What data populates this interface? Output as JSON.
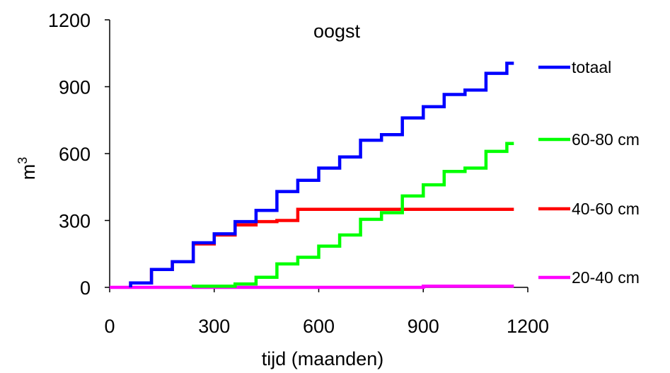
{
  "chart_data": {
    "type": "line",
    "title": "oogst",
    "xlabel": "tijd (maanden)",
    "ylabel_base": "m",
    "ylabel_sup": "3",
    "xlim": [
      0,
      1200
    ],
    "ylim": [
      0,
      1200
    ],
    "xticks": [
      0,
      300,
      600,
      900,
      1200
    ],
    "yticks": [
      0,
      300,
      600,
      900,
      1200
    ],
    "grid": false,
    "legend_position": "right",
    "series": [
      {
        "name": "totaal",
        "color": "#0000ff",
        "points": [
          [
            60,
            0
          ],
          [
            60,
            20
          ],
          [
            120,
            20
          ],
          [
            120,
            80
          ],
          [
            180,
            80
          ],
          [
            180,
            115
          ],
          [
            240,
            115
          ],
          [
            240,
            200
          ],
          [
            300,
            200
          ],
          [
            300,
            240
          ],
          [
            360,
            240
          ],
          [
            360,
            295
          ],
          [
            420,
            295
          ],
          [
            420,
            345
          ],
          [
            480,
            345
          ],
          [
            480,
            430
          ],
          [
            540,
            430
          ],
          [
            540,
            480
          ],
          [
            600,
            480
          ],
          [
            600,
            535
          ],
          [
            660,
            535
          ],
          [
            660,
            585
          ],
          [
            720,
            585
          ],
          [
            720,
            660
          ],
          [
            780,
            660
          ],
          [
            780,
            685
          ],
          [
            840,
            685
          ],
          [
            840,
            760
          ],
          [
            900,
            760
          ],
          [
            900,
            810
          ],
          [
            960,
            810
          ],
          [
            960,
            865
          ],
          [
            1020,
            865
          ],
          [
            1020,
            885
          ],
          [
            1080,
            885
          ],
          [
            1080,
            960
          ],
          [
            1140,
            960
          ],
          [
            1140,
            1005
          ],
          [
            1160,
            1005
          ]
        ]
      },
      {
        "name": "60-80 cm",
        "color": "#00ff00",
        "points": [
          [
            240,
            0
          ],
          [
            240,
            5
          ],
          [
            360,
            5
          ],
          [
            360,
            15
          ],
          [
            420,
            15
          ],
          [
            420,
            45
          ],
          [
            480,
            45
          ],
          [
            480,
            105
          ],
          [
            540,
            105
          ],
          [
            540,
            135
          ],
          [
            600,
            135
          ],
          [
            600,
            185
          ],
          [
            660,
            185
          ],
          [
            660,
            235
          ],
          [
            720,
            235
          ],
          [
            720,
            305
          ],
          [
            780,
            305
          ],
          [
            780,
            335
          ],
          [
            840,
            335
          ],
          [
            840,
            410
          ],
          [
            900,
            410
          ],
          [
            900,
            460
          ],
          [
            960,
            460
          ],
          [
            960,
            520
          ],
          [
            1020,
            520
          ],
          [
            1020,
            535
          ],
          [
            1080,
            535
          ],
          [
            1080,
            610
          ],
          [
            1140,
            610
          ],
          [
            1140,
            645
          ],
          [
            1160,
            645
          ]
        ]
      },
      {
        "name": "40-60 cm",
        "color": "#ff0000",
        "points": [
          [
            60,
            0
          ],
          [
            60,
            20
          ],
          [
            120,
            20
          ],
          [
            120,
            80
          ],
          [
            180,
            80
          ],
          [
            180,
            115
          ],
          [
            240,
            115
          ],
          [
            240,
            195
          ],
          [
            300,
            195
          ],
          [
            300,
            235
          ],
          [
            360,
            235
          ],
          [
            360,
            280
          ],
          [
            420,
            280
          ],
          [
            420,
            295
          ],
          [
            480,
            295
          ],
          [
            480,
            300
          ],
          [
            540,
            300
          ],
          [
            540,
            325
          ],
          [
            540,
            350
          ],
          [
            1160,
            350
          ]
        ]
      },
      {
        "name": "20-40 cm",
        "color": "#ff00ff",
        "points": [
          [
            0,
            0
          ],
          [
            900,
            0
          ],
          [
            900,
            5
          ],
          [
            1160,
            5
          ]
        ]
      }
    ]
  }
}
